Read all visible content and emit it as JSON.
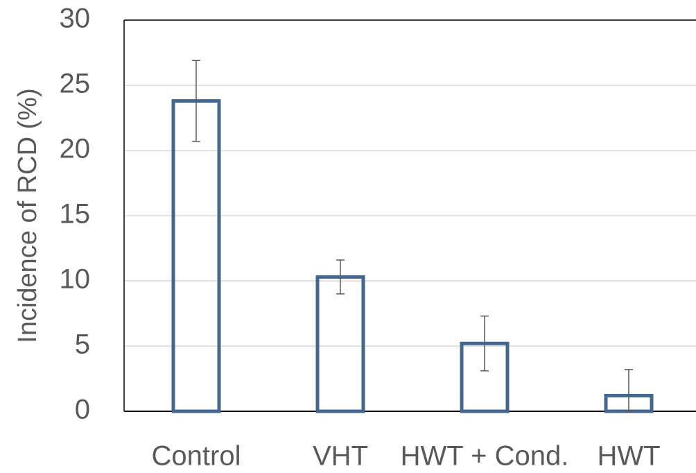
{
  "chart_data": {
    "type": "bar",
    "y_label": "Incidence of RCD (%)",
    "categories": [
      "Control",
      "VHT",
      "HWT + Cond.",
      "HWT"
    ],
    "values": [
      23.8,
      10.3,
      5.2,
      1.2
    ],
    "errors": [
      3.1,
      1.3,
      2.1,
      2.0
    ],
    "color": "#44678f",
    "ylim": [
      0,
      30
    ],
    "yticks": [
      0,
      5,
      10,
      15,
      20,
      25,
      30
    ],
    "grid": true
  }
}
